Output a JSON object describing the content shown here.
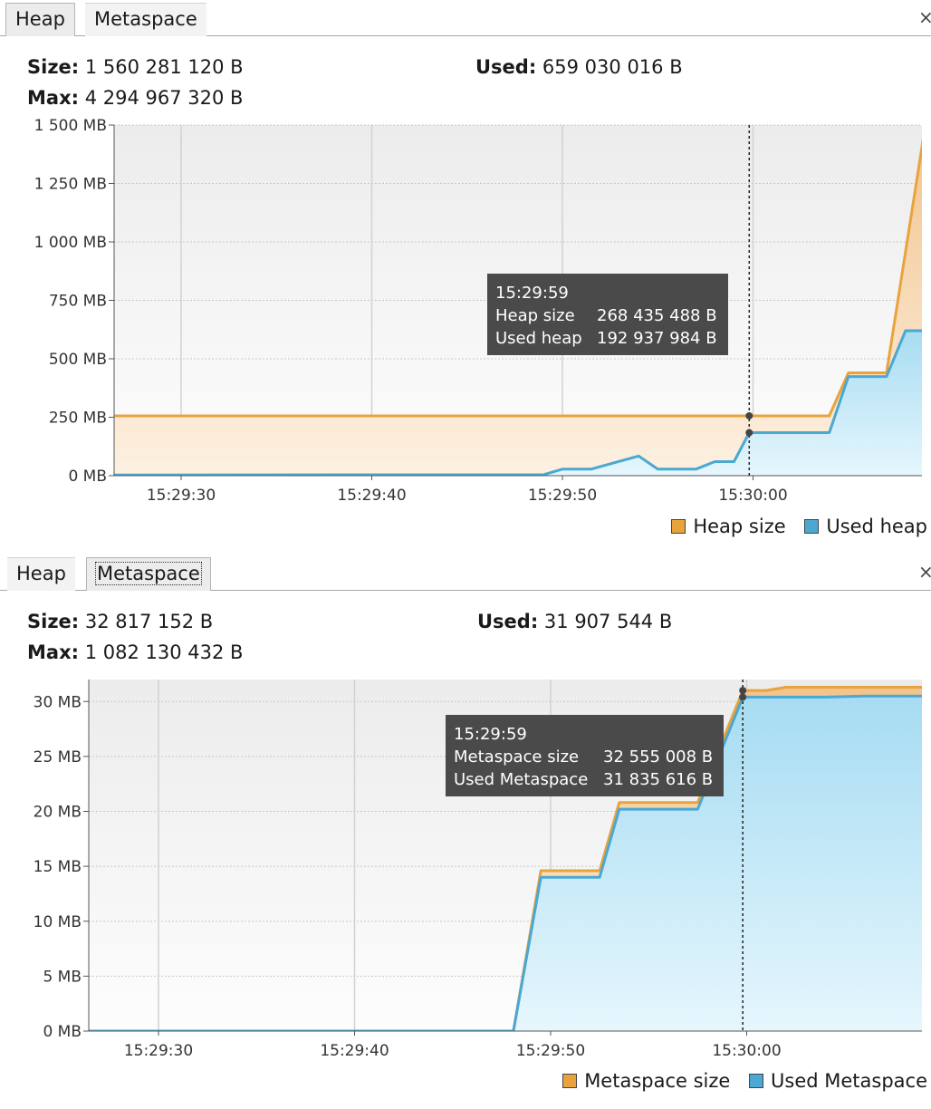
{
  "heap_panel": {
    "tabs": [
      {
        "label": "Heap",
        "selected": true
      },
      {
        "label": "Metaspace",
        "selected": false
      }
    ],
    "close_label": "×",
    "stats": {
      "size_label": "Size:",
      "size_value": "1 560 281 120 B",
      "used_label": "Used:",
      "used_value": "659 030 016 B",
      "max_label": "Max:",
      "max_value": "4 294 967 320 B"
    },
    "tooltip": {
      "time": "15:29:59",
      "rows": [
        {
          "label": "Heap size",
          "value": "268 435 488 B"
        },
        {
          "label": "Used heap",
          "value": "192 937 984 B"
        }
      ]
    },
    "legend": [
      {
        "label": "Heap size",
        "color": "#e8a33d"
      },
      {
        "label": "Used heap",
        "color": "#4aa8d3"
      }
    ],
    "chart_data": {
      "type": "area",
      "y_unit": "MB",
      "ylim": [
        0,
        1500
      ],
      "y_ticks": [
        0,
        250,
        500,
        750,
        1000,
        1250,
        1500
      ],
      "y_tick_labels": [
        "0 MB",
        "250 MB",
        "500 MB",
        "750 MB",
        "1 000 MB",
        "1 250 MB",
        "1 500 MB"
      ],
      "xlim": [
        -36,
        55
      ],
      "x_unit": "seconds relative to 15:29:30",
      "x_ticks": [
        0,
        10,
        20,
        30
      ],
      "x_tick_labels": [
        "15:29:30",
        "15:29:40",
        "15:29:50",
        "15:30:00"
      ],
      "crosshair_x": 29.8,
      "series": [
        {
          "name": "Heap size",
          "color": "#e8a33d",
          "points": [
            [
              -36,
              256
            ],
            [
              2,
              256
            ],
            [
              12,
              256
            ],
            [
              22,
              256
            ],
            [
              29.8,
              256
            ],
            [
              32,
              256
            ],
            [
              34,
              256
            ],
            [
              35,
              440
            ],
            [
              37,
              440
            ],
            [
              39,
              1480
            ],
            [
              42,
              1480
            ]
          ]
        },
        {
          "name": "Used heap",
          "color": "#4aa8d3",
          "points": [
            [
              -36,
              2
            ],
            [
              -12,
              2
            ],
            [
              10,
              4
            ],
            [
              19,
              4
            ],
            [
              20,
              28
            ],
            [
              21.5,
              28
            ],
            [
              24,
              84
            ],
            [
              25,
              28
            ],
            [
              27,
              28
            ],
            [
              28,
              60
            ],
            [
              29,
              60
            ],
            [
              29.8,
              184
            ],
            [
              32,
              184
            ],
            [
              34,
              184
            ],
            [
              35,
              424
            ],
            [
              37,
              424
            ],
            [
              38,
              620
            ],
            [
              40.5,
              620
            ],
            [
              42,
              624
            ]
          ]
        }
      ]
    }
  },
  "metaspace_panel": {
    "tabs": [
      {
        "label": "Heap",
        "selected": false
      },
      {
        "label": "Metaspace",
        "selected": true
      }
    ],
    "close_label": "×",
    "stats": {
      "size_label": "Size:",
      "size_value": "32 817 152 B",
      "used_label": "Used:",
      "used_value": "31 907 544 B",
      "max_label": "Max:",
      "max_value": "1 082 130 432 B"
    },
    "tooltip": {
      "time": "15:29:59",
      "rows": [
        {
          "label": "Metaspace size",
          "value": "32 555 008 B"
        },
        {
          "label": "Used Metaspace",
          "value": "31 835 616 B"
        }
      ]
    },
    "legend": [
      {
        "label": "Metaspace size",
        "color": "#e8a33d"
      },
      {
        "label": "Used Metaspace",
        "color": "#4aa8d3"
      }
    ],
    "chart_data": {
      "type": "area",
      "y_unit": "MB",
      "ylim": [
        0,
        32
      ],
      "y_ticks": [
        0,
        5,
        10,
        15,
        20,
        25,
        30
      ],
      "y_tick_labels": [
        "0 MB",
        "5 MB",
        "10 MB",
        "15 MB",
        "20 MB",
        "25 MB",
        "30 MB"
      ],
      "xlim": [
        -36,
        55
      ],
      "x_unit": "seconds relative to 15:29:30",
      "x_ticks": [
        0,
        10,
        20,
        30
      ],
      "x_tick_labels": [
        "15:29:30",
        "15:29:40",
        "15:29:50",
        "15:30:00"
      ],
      "crosshair_x": 29.8,
      "series": [
        {
          "name": "Metaspace size",
          "color": "#e8a33d",
          "points": [
            [
              -36,
              0
            ],
            [
              18.1,
              0
            ],
            [
              19.5,
              14.6
            ],
            [
              22.5,
              14.6
            ],
            [
              23.5,
              20.8
            ],
            [
              27.5,
              20.8
            ],
            [
              29.8,
              31.0
            ],
            [
              31,
              31.0
            ],
            [
              32,
              31.3
            ],
            [
              36,
              31.3
            ],
            [
              39,
              31.3
            ],
            [
              42,
              31.3
            ]
          ]
        },
        {
          "name": "Used Metaspace",
          "color": "#4aa8d3",
          "points": [
            [
              -36,
              0
            ],
            [
              18.1,
              0
            ],
            [
              19.5,
              14.0
            ],
            [
              22.5,
              14.0
            ],
            [
              23.5,
              20.2
            ],
            [
              27.5,
              20.2
            ],
            [
              29.8,
              30.4
            ],
            [
              34,
              30.4
            ],
            [
              36,
              30.5
            ],
            [
              39,
              30.5
            ],
            [
              42,
              30.5
            ]
          ]
        }
      ]
    }
  }
}
